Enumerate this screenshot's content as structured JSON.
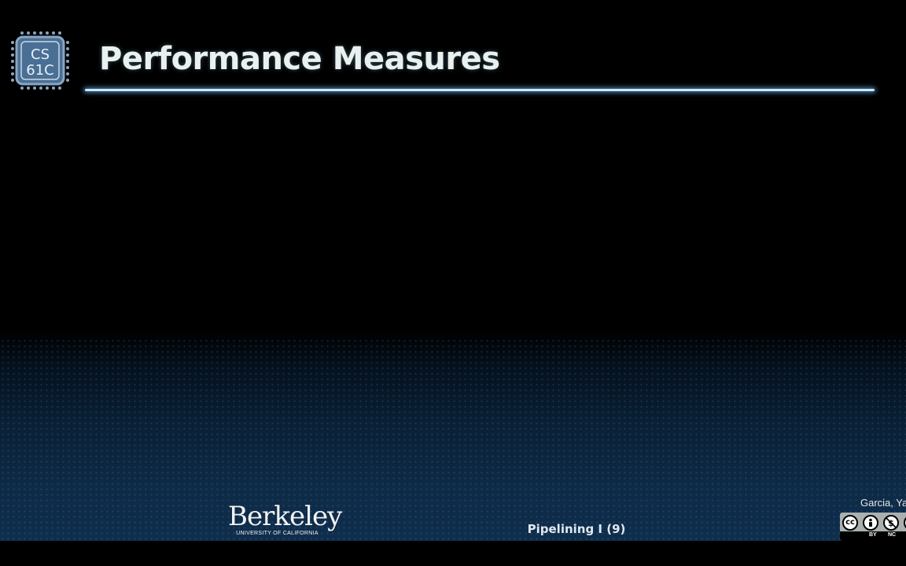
{
  "slide": {
    "course_logo": {
      "line1": "CS",
      "line2": "61C"
    },
    "title": "Performance Measures",
    "footer": {
      "university_name": "Berkeley",
      "university_sub": "UNIVERSITY OF CALIFORNIA",
      "lecture_label": "Pipelining I (9)",
      "author": "Garcia, Ya",
      "license": {
        "icon_cc": "cc",
        "label_by": "BY",
        "label_nc": "NC"
      }
    }
  },
  "colors": {
    "title": "#e9f1ee",
    "rule": "#cfe6f5",
    "logo_bg": "#4a6f94",
    "gradient_bottom": "#0f2e4d"
  }
}
